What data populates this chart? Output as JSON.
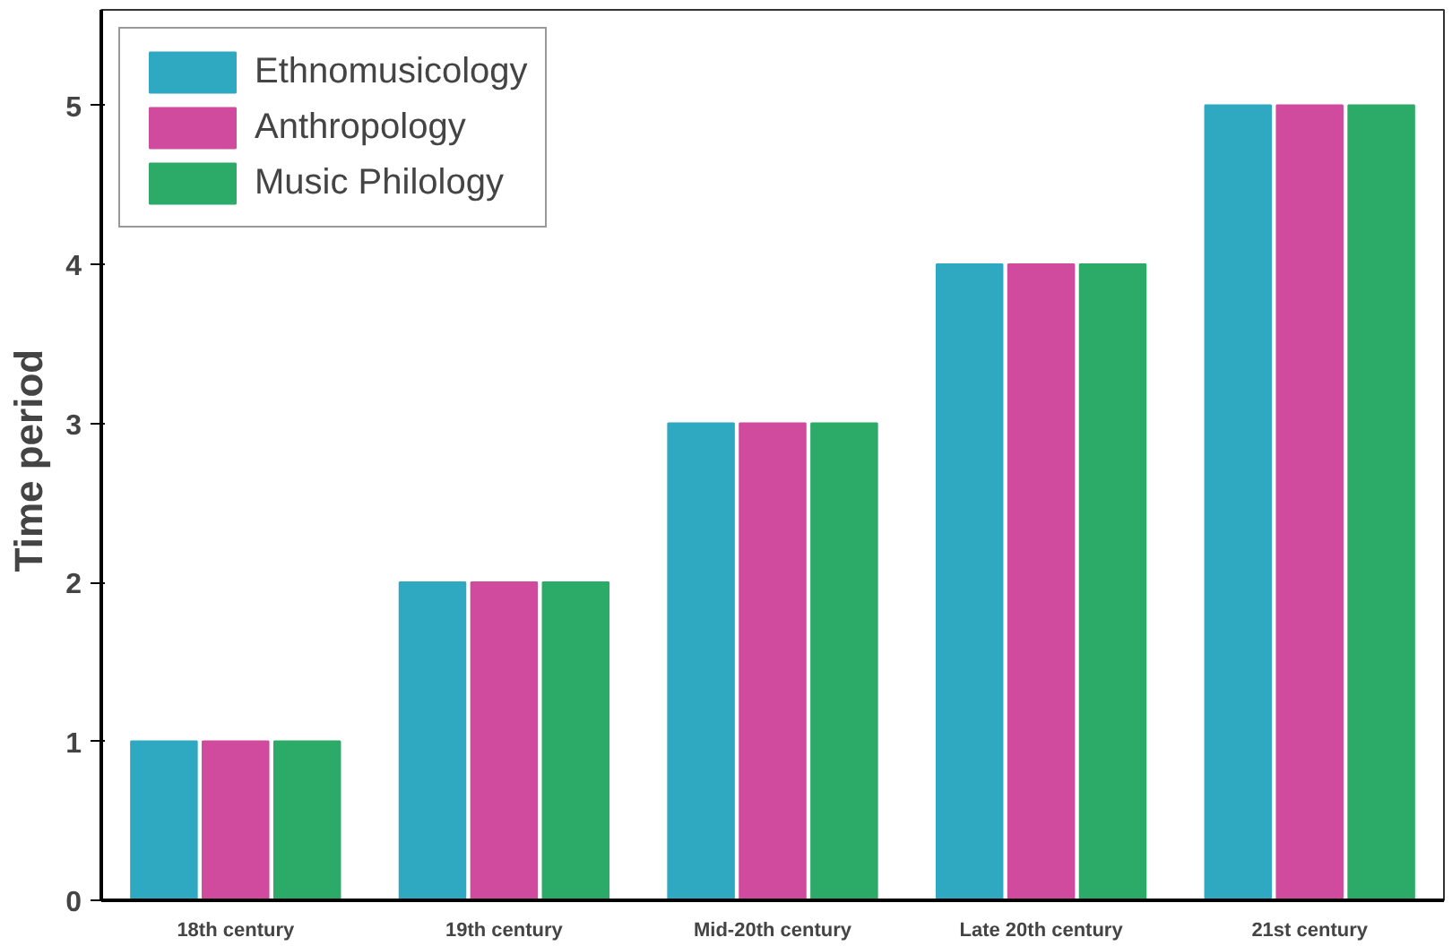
{
  "chart_data": {
    "type": "bar",
    "ylabel": "Time  period",
    "categories": [
      "18th century",
      "19th century",
      "Mid-20th century",
      "Late 20th century",
      "21st century"
    ],
    "series": [
      {
        "name": "Ethnomusicology",
        "color": "#2fa8c2",
        "values": [
          1,
          2,
          3,
          4,
          5
        ]
      },
      {
        "name": "Anthropology",
        "color": "#d04a9e",
        "values": [
          1,
          2,
          3,
          4,
          5
        ]
      },
      {
        "name": "Music Philology",
        "color": "#2caa68",
        "values": [
          1,
          2,
          3,
          4,
          5
        ]
      }
    ],
    "ylim": [
      0,
      5.6
    ],
    "yticks": [
      0,
      1,
      2,
      3,
      4,
      5
    ],
    "grid": false,
    "legend": "top left"
  }
}
